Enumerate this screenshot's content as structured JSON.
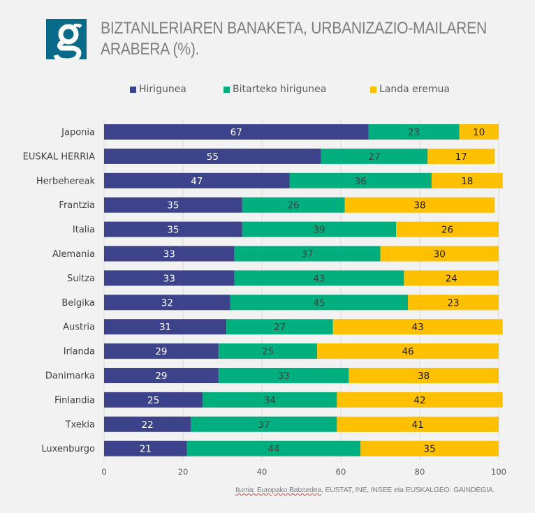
{
  "header": {
    "logo_letter": "g",
    "title_line1": "BIZTANLERIAREN BANAKETA, URBANIZAZIO-MAILAREN",
    "title_line2": "ARABERA (%)."
  },
  "source": {
    "prefix": "Iturria: Europako Batzordea",
    "rest": ", EUSTAT, INE, INSEE eta EUSKALGEO. GAINDEGIA."
  },
  "chart_data": {
    "type": "bar",
    "orientation": "horizontal",
    "stacked": true,
    "title": "BIZTANLERIAREN BANAKETA, URBANIZAZIO-MAILAREN ARABERA (%).",
    "xlabel": "",
    "ylabel": "",
    "xlim": [
      0,
      100
    ],
    "xticks": [
      0,
      20,
      40,
      60,
      80,
      100
    ],
    "grid": true,
    "legend_position": "top",
    "categories": [
      "Japonia",
      "EUSKAL HERRIA",
      "Herbehereak",
      "Frantzia",
      "Italia",
      "Alemania",
      "Suitza",
      "Belgika",
      "Austria",
      "Irlanda",
      "Danimarka",
      "Finlandia",
      "Txekia",
      "Luxenburgo"
    ],
    "series": [
      {
        "name": "Hirigunea",
        "color": "#3c438a",
        "label_color": "#ffffff",
        "values": [
          67,
          55,
          47,
          35,
          35,
          33,
          33,
          32,
          31,
          29,
          29,
          25,
          22,
          21
        ]
      },
      {
        "name": "Bitarteko hirigunea",
        "color": "#00ae7e",
        "label_color": "#404040",
        "values": [
          23,
          27,
          36,
          26,
          39,
          37,
          43,
          45,
          27,
          25,
          33,
          34,
          37,
          44
        ]
      },
      {
        "name": "Landa eremua",
        "color": "#ffc000",
        "label_color": "#1a1a1a",
        "values": [
          10,
          17,
          18,
          38,
          26,
          30,
          24,
          23,
          43,
          46,
          38,
          42,
          41,
          35
        ]
      }
    ]
  }
}
